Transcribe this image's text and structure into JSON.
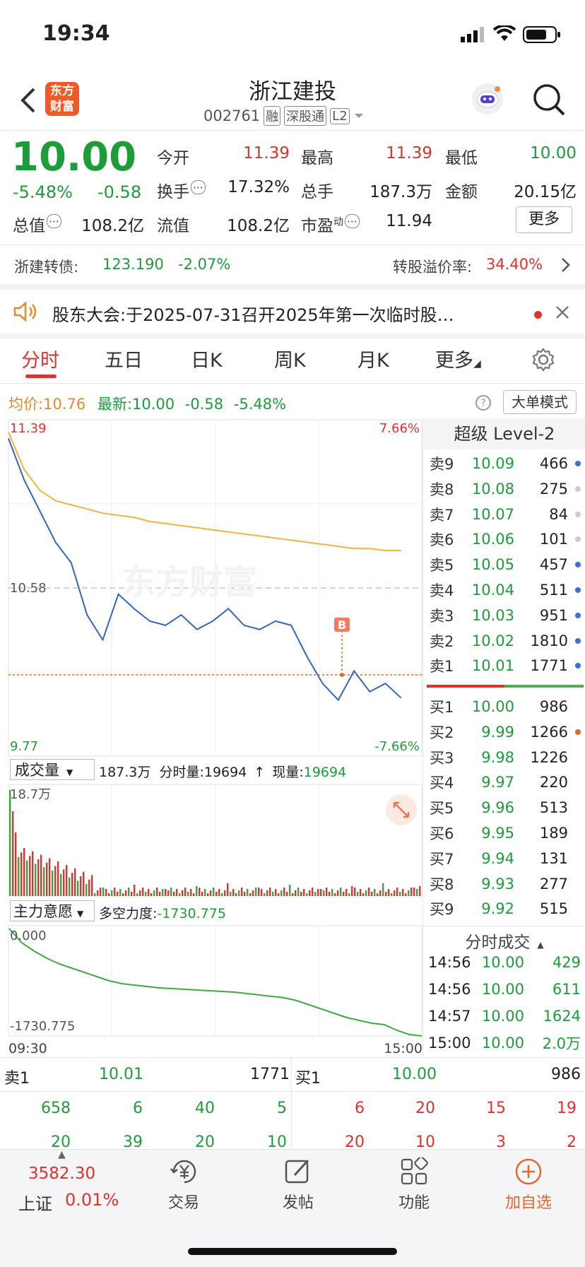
{
  "status_bar": {
    "time": "19:34"
  },
  "header": {
    "title": "浙江建投",
    "code": "002761",
    "badges": [
      "融",
      "深股通",
      "L2"
    ],
    "logo_text": "东方财富"
  },
  "quote": {
    "price": "10.00",
    "change_pct": "-5.48%",
    "change": "-0.58",
    "fields": [
      {
        "label": "今开",
        "value": "11.39",
        "color": "red"
      },
      {
        "label": "最高",
        "value": "11.39",
        "color": "red"
      },
      {
        "label": "最低",
        "value": "10.00",
        "color": "green"
      },
      {
        "label": "换手",
        "value": "17.32%",
        "color": "black"
      },
      {
        "label": "总手",
        "value": "187.3万",
        "color": "black"
      },
      {
        "label": "金额",
        "value": "20.15亿",
        "color": "black"
      },
      {
        "label": "总值",
        "value": "108.2亿",
        "color": "black"
      },
      {
        "label": "流值",
        "value": "108.2亿",
        "color": "black"
      },
      {
        "label": "市盈",
        "sup": "动",
        "value": "11.94",
        "color": "black"
      }
    ],
    "more_label": "更多"
  },
  "bond": {
    "name": "浙建转债:",
    "price": "123.190",
    "change": "-2.07%",
    "premium_label": "转股溢价率:",
    "premium_value": "34.40%"
  },
  "notice": {
    "text": "股东大会:于2025-07-31召开2025年第一次临时股…"
  },
  "tabs": [
    "分时",
    "五日",
    "日K",
    "周K",
    "月K",
    "更多"
  ],
  "intraday_bar": {
    "avg_label": "均价:",
    "avg_value": "10.76",
    "latest_label": "最新:",
    "latest_value": "10.00",
    "latest_change": "-0.58",
    "latest_pct": "-5.48%",
    "mode_button": "大单模式"
  },
  "chart_axes": {
    "y_top": "11.39",
    "y_mid": "10.58",
    "y_bottom": "9.77",
    "pct_top": "7.66%",
    "pct_bottom": "-7.66%",
    "marker": "B",
    "watermark": "东方财富"
  },
  "volume_panel": {
    "selector": "成交量",
    "total": "187.3万",
    "minute_label": "分时量:",
    "minute_value": "19694",
    "current_label": "现量:",
    "current_value": "19694",
    "y_max": "18.7万"
  },
  "force_panel": {
    "selector": "主力意愿",
    "label": "多空力度:",
    "value": "-1730.775",
    "y_top": "0.000",
    "y_bottom": "-1730.775",
    "x_start": "09:30",
    "x_end": "15:00"
  },
  "order_book": {
    "title": "超级 Level-2",
    "asks": [
      {
        "label": "卖9",
        "price": "10.09",
        "vol": "466",
        "dot": "#3b6fd6"
      },
      {
        "label": "卖8",
        "price": "10.08",
        "vol": "275",
        "dot": "#cccccc"
      },
      {
        "label": "卖7",
        "price": "10.07",
        "vol": "84",
        "dot": "#cccccc"
      },
      {
        "label": "卖6",
        "price": "10.06",
        "vol": "101",
        "dot": "#cccccc"
      },
      {
        "label": "卖5",
        "price": "10.05",
        "vol": "457",
        "dot": "#3b6fd6"
      },
      {
        "label": "卖4",
        "price": "10.04",
        "vol": "511",
        "dot": "#3b6fd6"
      },
      {
        "label": "卖3",
        "price": "10.03",
        "vol": "951",
        "dot": "#3b6fd6"
      },
      {
        "label": "卖2",
        "price": "10.02",
        "vol": "1810",
        "dot": "#3b6fd6"
      },
      {
        "label": "卖1",
        "price": "10.01",
        "vol": "1771",
        "dot": "#3b6fd6"
      }
    ],
    "bids": [
      {
        "label": "买1",
        "price": "10.00",
        "vol": "986",
        "dot": ""
      },
      {
        "label": "买2",
        "price": "9.99",
        "vol": "1266",
        "dot": "#e06a2b"
      },
      {
        "label": "买3",
        "price": "9.98",
        "vol": "1226",
        "dot": ""
      },
      {
        "label": "买4",
        "price": "9.97",
        "vol": "220",
        "dot": ""
      },
      {
        "label": "买5",
        "price": "9.96",
        "vol": "513",
        "dot": ""
      },
      {
        "label": "买6",
        "price": "9.95",
        "vol": "189",
        "dot": ""
      },
      {
        "label": "买7",
        "price": "9.94",
        "vol": "131",
        "dot": ""
      },
      {
        "label": "买8",
        "price": "9.93",
        "vol": "277",
        "dot": ""
      },
      {
        "label": "买9",
        "price": "9.92",
        "vol": "515",
        "dot": ""
      }
    ],
    "trades_title": "分时成交",
    "trades": [
      {
        "time": "14:56",
        "price": "10.00",
        "vol": "429"
      },
      {
        "time": "14:56",
        "price": "10.00",
        "vol": "611"
      },
      {
        "time": "14:57",
        "price": "10.00",
        "vol": "1624"
      },
      {
        "time": "15:00",
        "price": "10.00",
        "vol": "2.0万"
      }
    ]
  },
  "depth": {
    "sell_label": "卖1",
    "sell_price": "10.01",
    "sell_vol": "1771",
    "buy_label": "买1",
    "buy_price": "10.00",
    "buy_vol": "986",
    "sell_row1": [
      "658",
      "6",
      "40",
      "5"
    ],
    "buy_row1": [
      "6",
      "20",
      "15",
      "19"
    ],
    "sell_row2": [
      "20",
      "39",
      "20",
      "10"
    ],
    "buy_row2": [
      "20",
      "10",
      "3",
      "2"
    ]
  },
  "bottom_nav": {
    "index_value": "3582.30",
    "index_name": "上证",
    "index_pct": "0.01%",
    "items": [
      "交易",
      "发帖",
      "功能",
      "加自选"
    ]
  },
  "chart_data": {
    "type": "line",
    "xlabel": "",
    "ylabel": "",
    "ylim": [
      9.77,
      11.39
    ],
    "x_range": [
      "09:30",
      "15:00"
    ],
    "series": [
      {
        "values": [
          11.3,
          11.1,
          10.95,
          10.8,
          10.7,
          10.45,
          10.33,
          10.55,
          10.48,
          10.42,
          10.4,
          10.45,
          10.38,
          10.42,
          10.48,
          10.4,
          10.38,
          10.42,
          10.4,
          10.25,
          10.12,
          10.04,
          10.18,
          10.08,
          10.12,
          10.05
        ]
      },
      {
        "values": [
          11.33,
          11.15,
          11.05,
          11.0,
          10.98,
          10.96,
          10.94,
          10.93,
          10.92,
          10.9,
          10.89,
          10.88,
          10.87,
          10.86,
          10.85,
          10.84,
          10.83,
          10.82,
          10.81,
          10.8,
          10.79,
          10.78,
          10.77,
          10.77,
          10.76,
          10.76
        ]
      }
    ]
  }
}
